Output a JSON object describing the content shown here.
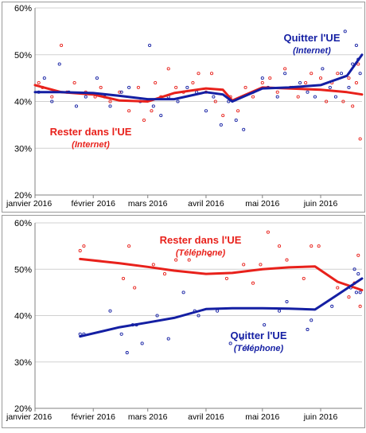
{
  "colors": {
    "remain": "#e8211b",
    "leave": "#141fa3",
    "grid": "#d0d0d0",
    "axis": "#808080",
    "text": "#000000",
    "border": "#9a9a9a"
  },
  "chart_data": [
    {
      "type": "line",
      "x_axis": {
        "ticks": [
          "janvier 2016",
          "février 2016",
          "mars 2016",
          "avril 2016",
          "mai 2016",
          "juin 2016"
        ],
        "range": [
          "2016-01-01",
          "2016-06-23"
        ]
      },
      "y_axis": {
        "ticks": [
          "20%",
          "30%",
          "40%",
          "50%",
          "60%"
        ],
        "ylim": [
          20,
          60
        ],
        "unit": "%"
      },
      "grid": true,
      "labels": [
        {
          "series": "leave",
          "lines": [
            "Quitter l'UE",
            "(Internet)"
          ]
        },
        {
          "series": "remain",
          "lines": [
            "Rester dans l'UE",
            "(Internet)"
          ]
        }
      ],
      "series": [
        {
          "key": "remain",
          "name": "Rester dans l'UE (Internet)",
          "x": [
            "2016-01-01",
            "2016-01-15",
            "2016-02-01",
            "2016-02-15",
            "2016-03-01",
            "2016-03-15",
            "2016-04-01",
            "2016-04-10",
            "2016-04-15",
            "2016-05-01",
            "2016-05-15",
            "2016-06-01",
            "2016-06-15",
            "2016-06-23"
          ],
          "values": [
            43.5,
            42,
            41.5,
            40.2,
            40,
            41.8,
            42.8,
            42.5,
            40.2,
            43,
            42.8,
            42.5,
            42,
            41.5
          ]
        },
        {
          "key": "leave",
          "name": "Quitter l'UE (Internet)",
          "x": [
            "2016-01-01",
            "2016-01-15",
            "2016-02-01",
            "2016-02-15",
            "2016-03-01",
            "2016-03-15",
            "2016-04-01",
            "2016-04-10",
            "2016-04-15",
            "2016-05-01",
            "2016-05-15",
            "2016-06-01",
            "2016-06-15",
            "2016-06-23"
          ],
          "values": [
            42,
            42,
            41.8,
            41.2,
            40.5,
            40.5,
            42,
            41.5,
            40,
            42.8,
            43,
            43.5,
            45.5,
            50
          ]
        }
      ],
      "scatter": {
        "remain": [
          [
            "2016-01-03",
            44
          ],
          [
            "2016-01-05",
            43
          ],
          [
            "2016-01-10",
            41
          ],
          [
            "2016-01-15",
            52
          ],
          [
            "2016-01-18",
            42
          ],
          [
            "2016-01-22",
            44
          ],
          [
            "2016-01-28",
            42
          ],
          [
            "2016-02-02",
            41
          ],
          [
            "2016-02-05",
            43
          ],
          [
            "2016-02-10",
            40
          ],
          [
            "2016-02-15",
            42
          ],
          [
            "2016-02-20",
            38
          ],
          [
            "2016-02-25",
            43
          ],
          [
            "2016-02-28",
            36
          ],
          [
            "2016-03-03",
            38
          ],
          [
            "2016-03-05",
            44
          ],
          [
            "2016-03-08",
            41
          ],
          [
            "2016-03-12",
            47
          ],
          [
            "2016-03-16",
            43
          ],
          [
            "2016-03-20",
            42
          ],
          [
            "2016-03-25",
            44
          ],
          [
            "2016-03-28",
            46
          ],
          [
            "2016-04-01",
            42
          ],
          [
            "2016-04-04",
            46
          ],
          [
            "2016-04-06",
            40
          ],
          [
            "2016-04-10",
            37
          ],
          [
            "2016-04-14",
            41
          ],
          [
            "2016-04-18",
            38
          ],
          [
            "2016-04-22",
            43
          ],
          [
            "2016-04-26",
            41
          ],
          [
            "2016-05-01",
            44
          ],
          [
            "2016-05-05",
            45
          ],
          [
            "2016-05-09",
            42
          ],
          [
            "2016-05-13",
            47
          ],
          [
            "2016-05-16",
            43
          ],
          [
            "2016-05-20",
            41
          ],
          [
            "2016-05-24",
            44
          ],
          [
            "2016-05-27",
            46
          ],
          [
            "2016-06-01",
            45
          ],
          [
            "2016-06-04",
            40
          ],
          [
            "2016-06-07",
            44
          ],
          [
            "2016-06-10",
            46
          ],
          [
            "2016-06-13",
            40
          ],
          [
            "2016-06-16",
            45
          ],
          [
            "2016-06-18",
            39
          ],
          [
            "2016-06-20",
            44
          ],
          [
            "2016-06-21",
            48
          ],
          [
            "2016-06-22",
            32
          ]
        ],
        "leave": [
          [
            "2016-01-03",
            42
          ],
          [
            "2016-01-06",
            45
          ],
          [
            "2016-01-10",
            40
          ],
          [
            "2016-01-14",
            48
          ],
          [
            "2016-01-19",
            42
          ],
          [
            "2016-01-23",
            39
          ],
          [
            "2016-01-28",
            41
          ],
          [
            "2016-02-03",
            45
          ],
          [
            "2016-02-07",
            41
          ],
          [
            "2016-02-10",
            39
          ],
          [
            "2016-02-16",
            42
          ],
          [
            "2016-02-20",
            43
          ],
          [
            "2016-02-26",
            40
          ],
          [
            "2016-03-02",
            52
          ],
          [
            "2016-03-04",
            39
          ],
          [
            "2016-03-08",
            37
          ],
          [
            "2016-03-12",
            41
          ],
          [
            "2016-03-17",
            40
          ],
          [
            "2016-03-22",
            43
          ],
          [
            "2016-03-27",
            42
          ],
          [
            "2016-04-01",
            38
          ],
          [
            "2016-04-05",
            41
          ],
          [
            "2016-04-09",
            35
          ],
          [
            "2016-04-13",
            40
          ],
          [
            "2016-04-17",
            36
          ],
          [
            "2016-04-21",
            34
          ],
          [
            "2016-04-26",
            42
          ],
          [
            "2016-05-01",
            45
          ],
          [
            "2016-05-04",
            43
          ],
          [
            "2016-05-09",
            41
          ],
          [
            "2016-05-13",
            46
          ],
          [
            "2016-05-17",
            43
          ],
          [
            "2016-05-21",
            44
          ],
          [
            "2016-05-25",
            42
          ],
          [
            "2016-05-29",
            41
          ],
          [
            "2016-06-02",
            47
          ],
          [
            "2016-06-06",
            43
          ],
          [
            "2016-06-09",
            41
          ],
          [
            "2016-06-12",
            46
          ],
          [
            "2016-06-14",
            55
          ],
          [
            "2016-06-16",
            43
          ],
          [
            "2016-06-18",
            48
          ],
          [
            "2016-06-20",
            52
          ],
          [
            "2016-06-21",
            49
          ],
          [
            "2016-06-22",
            46
          ]
        ]
      }
    },
    {
      "type": "line",
      "x_axis": {
        "ticks": [
          "janvier 2016",
          "février 2016",
          "mars 2016",
          "avril 2016",
          "mai 2016",
          "juin 2016"
        ],
        "range": [
          "2016-01-01",
          "2016-06-23"
        ]
      },
      "y_axis": {
        "ticks": [
          "20%",
          "30%",
          "40%",
          "50%",
          "60%"
        ],
        "ylim": [
          20,
          60
        ],
        "unit": "%"
      },
      "grid": true,
      "labels": [
        {
          "series": "remain",
          "lines": [
            "Rester dans l'UE",
            "(Téléphone)"
          ]
        },
        {
          "series": "leave",
          "lines": [
            "Quitter l'UE",
            "(Téléphone)"
          ]
        }
      ],
      "series": [
        {
          "key": "remain",
          "name": "Rester dans l'UE (Téléphone)",
          "x": [
            "2016-01-25",
            "2016-02-15",
            "2016-03-01",
            "2016-03-15",
            "2016-04-01",
            "2016-04-15",
            "2016-05-01",
            "2016-05-15",
            "2016-05-29",
            "2016-06-10",
            "2016-06-23"
          ],
          "values": [
            52.2,
            51.3,
            50.5,
            49.7,
            49,
            49.2,
            50,
            50.4,
            50.6,
            47.3,
            45.5
          ]
        },
        {
          "key": "leave",
          "name": "Quitter l'UE (Téléphone)",
          "x": [
            "2016-01-25",
            "2016-02-15",
            "2016-03-01",
            "2016-03-15",
            "2016-04-01",
            "2016-04-15",
            "2016-05-01",
            "2016-05-15",
            "2016-05-29",
            "2016-06-10",
            "2016-06-23"
          ],
          "values": [
            35.5,
            37.5,
            38.5,
            39.5,
            41.4,
            41.6,
            41.6,
            41.5,
            41.3,
            44.5,
            48
          ]
        }
      ],
      "scatter": {
        "remain": [
          [
            "2016-01-25",
            54
          ],
          [
            "2016-01-27",
            55
          ],
          [
            "2016-02-17",
            48
          ],
          [
            "2016-02-20",
            55
          ],
          [
            "2016-02-23",
            46
          ],
          [
            "2016-03-04",
            51
          ],
          [
            "2016-03-10",
            49
          ],
          [
            "2016-03-16",
            52
          ],
          [
            "2016-03-23",
            52
          ],
          [
            "2016-04-03",
            53
          ],
          [
            "2016-04-12",
            48
          ],
          [
            "2016-04-21",
            51
          ],
          [
            "2016-04-26",
            47
          ],
          [
            "2016-04-30",
            51
          ],
          [
            "2016-05-04",
            58
          ],
          [
            "2016-05-10",
            55
          ],
          [
            "2016-05-14",
            52
          ],
          [
            "2016-05-23",
            48
          ],
          [
            "2016-05-27",
            55
          ],
          [
            "2016-05-31",
            55
          ],
          [
            "2016-06-10",
            46
          ],
          [
            "2016-06-16",
            44
          ],
          [
            "2016-06-19",
            47
          ],
          [
            "2016-06-21",
            53
          ],
          [
            "2016-06-22",
            42
          ]
        ],
        "leave": [
          [
            "2016-01-25",
            36
          ],
          [
            "2016-01-27",
            36
          ],
          [
            "2016-02-10",
            41
          ],
          [
            "2016-02-16",
            36
          ],
          [
            "2016-02-19",
            32
          ],
          [
            "2016-02-22",
            38
          ],
          [
            "2016-02-24",
            38
          ],
          [
            "2016-02-27",
            34
          ],
          [
            "2016-03-06",
            40
          ],
          [
            "2016-03-12",
            35
          ],
          [
            "2016-03-20",
            45
          ],
          [
            "2016-03-26",
            41
          ],
          [
            "2016-03-28",
            40
          ],
          [
            "2016-04-07",
            41
          ],
          [
            "2016-04-14",
            34
          ],
          [
            "2016-04-20",
            35
          ],
          [
            "2016-04-23",
            33
          ],
          [
            "2016-05-02",
            38
          ],
          [
            "2016-05-10",
            41
          ],
          [
            "2016-05-14",
            43
          ],
          [
            "2016-05-25",
            37
          ],
          [
            "2016-05-27",
            39
          ],
          [
            "2016-06-07",
            42
          ],
          [
            "2016-06-17",
            46
          ],
          [
            "2016-06-19",
            50
          ],
          [
            "2016-06-20",
            45
          ],
          [
            "2016-06-21",
            49
          ],
          [
            "2016-06-22",
            45
          ]
        ]
      }
    }
  ]
}
